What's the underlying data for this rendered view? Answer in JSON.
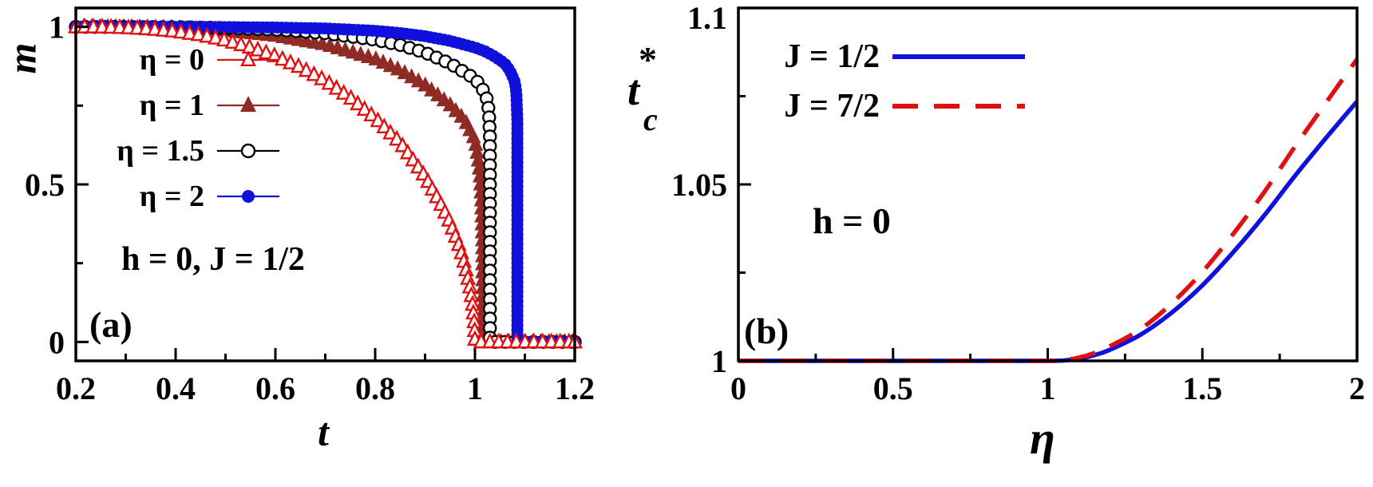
{
  "figure": {
    "background": "#ffffff",
    "frame_color": "#000000"
  },
  "chart_data": [
    {
      "id": "a",
      "type": "line",
      "panel_label": "(a)",
      "xlabel": "t",
      "ylabel": "m",
      "xlim": [
        0.2,
        1.2
      ],
      "ylim": [
        -0.06,
        1.06
      ],
      "xticks": [
        {
          "v": 0.2,
          "label": "0.2"
        },
        {
          "v": 0.4,
          "label": "0.4"
        },
        {
          "v": 0.6,
          "label": "0.6"
        },
        {
          "v": 0.8,
          "label": "0.8"
        },
        {
          "v": 1.0,
          "label": "1"
        },
        {
          "v": 1.2,
          "label": "1.2"
        }
      ],
      "xminor": [
        0.3,
        0.5,
        0.7,
        0.9,
        1.1
      ],
      "yticks": [
        {
          "v": 0,
          "label": "0"
        },
        {
          "v": 0.5,
          "label": "0.5"
        },
        {
          "v": 1,
          "label": "1"
        }
      ],
      "yminor": [
        0.25,
        0.75
      ],
      "annotation": "h = 0, J = 1/2",
      "legend": [
        {
          "label": "η = 0",
          "color": "#e01010",
          "marker": "triangle-open"
        },
        {
          "label": "η = 1",
          "color": "#8f2a24",
          "marker": "triangle-filled"
        },
        {
          "label": "η = 1.5",
          "color": "#000000",
          "marker": "circle-open"
        },
        {
          "label": "η = 2",
          "color": "#1010dd",
          "marker": "circle-filled"
        }
      ],
      "series": [
        {
          "name": "eta-1",
          "color": "#8f2a24",
          "marker": "triangle-filled",
          "marker_size": 7.5,
          "marker_spacing": 10,
          "points": [
            [
              0.2,
              1.0
            ],
            [
              0.3,
              0.9995
            ],
            [
              0.4,
              0.997
            ],
            [
              0.5,
              0.9885
            ],
            [
              0.6,
              0.972
            ],
            [
              0.7,
              0.944
            ],
            [
              0.8,
              0.898
            ],
            [
              0.85,
              0.862
            ],
            [
              0.9,
              0.815
            ],
            [
              0.95,
              0.752
            ],
            [
              0.98,
              0.703
            ],
            [
              1.0,
              0.64
            ],
            [
              1.005,
              0.595
            ],
            [
              1.01,
              0.53
            ],
            [
              1.013,
              0.45
            ],
            [
              1.015,
              0.32
            ],
            [
              1.016,
              0.0
            ],
            [
              1.2,
              0.0
            ]
          ]
        },
        {
          "name": "eta-1.5",
          "color": "#000000",
          "marker": "circle-open",
          "marker_size": 7.5,
          "marker_spacing": 12,
          "points": [
            [
              0.2,
              1.0
            ],
            [
              0.4,
              0.999
            ],
            [
              0.5,
              0.9965
            ],
            [
              0.6,
              0.991
            ],
            [
              0.7,
              0.98
            ],
            [
              0.8,
              0.959
            ],
            [
              0.85,
              0.9425
            ],
            [
              0.9,
              0.9185
            ],
            [
              0.95,
              0.884
            ],
            [
              1.0,
              0.8355
            ],
            [
              1.01,
              0.8155
            ],
            [
              1.02,
              0.79
            ],
            [
              1.025,
              0.765
            ],
            [
              1.028,
              0.73
            ],
            [
              1.03,
              0.655
            ],
            [
              1.03,
              0.0
            ],
            [
              1.2,
              0.0
            ]
          ]
        },
        {
          "name": "eta-2",
          "color": "#1010dd",
          "marker": "circle-filled",
          "marker_size": 7.5,
          "marker_spacing": 6,
          "points": [
            [
              0.2,
              1.0
            ],
            [
              0.4,
              0.9998
            ],
            [
              0.5,
              0.9993
            ],
            [
              0.6,
              0.998
            ],
            [
              0.7,
              0.995
            ],
            [
              0.8,
              0.9875
            ],
            [
              0.85,
              0.9805
            ],
            [
              0.9,
              0.9705
            ],
            [
              0.95,
              0.9555
            ],
            [
              1.0,
              0.9345
            ],
            [
              1.02,
              0.9225
            ],
            [
              1.04,
              0.9055
            ],
            [
              1.06,
              0.8835
            ],
            [
              1.07,
              0.8615
            ],
            [
              1.08,
              0.825
            ],
            [
              1.083,
              0.79
            ],
            [
              1.085,
              0.7
            ],
            [
              1.085,
              0.0
            ],
            [
              1.2,
              0.0
            ]
          ]
        },
        {
          "name": "eta-0",
          "color": "#e01010",
          "marker": "triangle-open",
          "marker_size": 8,
          "marker_spacing": 11,
          "points": [
            [
              0.2,
              0.9999
            ],
            [
              0.25,
              0.9996
            ],
            [
              0.3,
              0.9975
            ],
            [
              0.35,
              0.9931
            ],
            [
              0.4,
              0.9857
            ],
            [
              0.45,
              0.9743
            ],
            [
              0.5,
              0.9575
            ],
            [
              0.55,
              0.9347
            ],
            [
              0.6,
              0.9073
            ],
            [
              0.65,
              0.8717
            ],
            [
              0.7,
              0.829
            ],
            [
              0.75,
              0.7753
            ],
            [
              0.8,
              0.7104
            ],
            [
              0.85,
              0.6331
            ],
            [
              0.9,
              0.5251
            ],
            [
              0.93,
              0.4419
            ],
            [
              0.95,
              0.3799
            ],
            [
              0.97,
              0.2985
            ],
            [
              0.98,
              0.2431
            ],
            [
              0.99,
              0.1723
            ],
            [
              0.995,
              0.1218
            ],
            [
              0.999,
              0.0548
            ],
            [
              1.0,
              0.0
            ],
            [
              1.2,
              0.0
            ]
          ]
        }
      ]
    },
    {
      "id": "b",
      "type": "line",
      "panel_label": "(b)",
      "xlabel": "η",
      "ylabel": "t",
      "ylabel_sub": "c",
      "ylabel_sup": "*",
      "xlim": [
        0,
        2
      ],
      "ylim": [
        1.0,
        1.1
      ],
      "xticks": [
        {
          "v": 0,
          "label": "0"
        },
        {
          "v": 0.5,
          "label": "0.5"
        },
        {
          "v": 1,
          "label": "1"
        },
        {
          "v": 1.5,
          "label": "1.5"
        },
        {
          "v": 2,
          "label": "2"
        }
      ],
      "xminor": [
        0.25,
        0.75,
        1.25,
        1.75
      ],
      "yticks": [
        {
          "v": 1,
          "label": "1"
        },
        {
          "v": 1.05,
          "label": "1.05"
        },
        {
          "v": 1.1,
          "label": "1.1"
        }
      ],
      "yminor": [
        1.025,
        1.075
      ],
      "annotation": "h = 0",
      "legend": [
        {
          "label": "J = 1/2",
          "color": "#1010dd",
          "line": "solid"
        },
        {
          "label": "J = 7/2",
          "color": "#e01010",
          "line": "dashed"
        }
      ],
      "series": [
        {
          "name": "J-1/2",
          "color": "#1010dd",
          "line": "solid",
          "smooth": true,
          "points": [
            [
              0,
              1
            ],
            [
              0.2,
              1
            ],
            [
              0.4,
              1
            ],
            [
              0.6,
              1
            ],
            [
              0.8,
              1
            ],
            [
              0.9,
              1
            ],
            [
              1.0,
              1
            ],
            [
              1.05,
              1.0001
            ],
            [
              1.1,
              1.0006
            ],
            [
              1.15,
              1.0016
            ],
            [
              1.2,
              1.0031
            ],
            [
              1.3,
              1.0074
            ],
            [
              1.4,
              1.0136
            ],
            [
              1.5,
              1.0214
            ],
            [
              1.6,
              1.0308
            ],
            [
              1.7,
              1.0412
            ],
            [
              1.8,
              1.0525
            ],
            [
              1.9,
              1.0632
            ],
            [
              2.0,
              1.0735
            ]
          ]
        },
        {
          "name": "J-7/2",
          "color": "#e01010",
          "line": "dashed",
          "smooth": true,
          "points": [
            [
              0,
              1
            ],
            [
              0.2,
              1
            ],
            [
              0.4,
              1
            ],
            [
              0.6,
              1
            ],
            [
              0.8,
              1
            ],
            [
              0.9,
              1
            ],
            [
              1.0,
              1
            ],
            [
              1.05,
              1.0002
            ],
            [
              1.1,
              1.0009
            ],
            [
              1.15,
              1.0022
            ],
            [
              1.2,
              1.0041
            ],
            [
              1.3,
              1.009
            ],
            [
              1.4,
              1.0162
            ],
            [
              1.5,
              1.0252
            ],
            [
              1.6,
              1.036
            ],
            [
              1.7,
              1.0478
            ],
            [
              1.8,
              1.0608
            ],
            [
              1.9,
              1.0732
            ],
            [
              2.0,
              1.0855
            ]
          ]
        }
      ]
    }
  ]
}
